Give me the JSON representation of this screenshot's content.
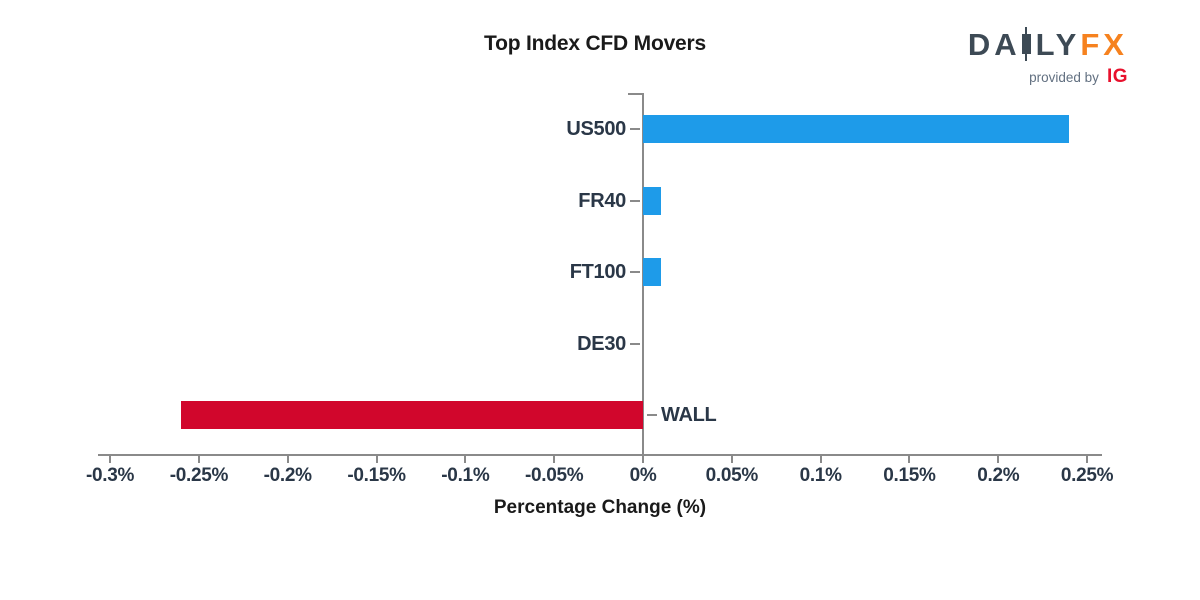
{
  "title": "Top Index CFD Movers",
  "logo": {
    "brand_part1": "DA",
    "brand_part2": "LY",
    "brand_part3": "FX",
    "provided_by": "provided by",
    "ig": "IG"
  },
  "chart_data": {
    "type": "bar",
    "orientation": "horizontal",
    "title": "Top Index CFD Movers",
    "xlabel": "Percentage Change (%)",
    "ylabel": "",
    "categories": [
      "US500",
      "FR40",
      "FT100",
      "DE30",
      "WALL"
    ],
    "values": [
      0.24,
      0.01,
      0.01,
      0.0,
      -0.26
    ],
    "value_unit": "%",
    "xlim": [
      -0.3,
      0.25
    ],
    "xtick_values": [
      -0.3,
      -0.25,
      -0.2,
      -0.15,
      -0.1,
      -0.05,
      0,
      0.05,
      0.1,
      0.15,
      0.2,
      0.25
    ],
    "xtick_labels": [
      "-0.3%",
      "-0.25%",
      "-0.2%",
      "-0.15%",
      "-0.1%",
      "-0.05%",
      "0%",
      "0.05%",
      "0.1%",
      "0.15%",
      "0.2%",
      "0.25%"
    ],
    "grid": false,
    "legend": "none",
    "bar_colors": {
      "positive": "#1E9BE9",
      "negative": "#D1062C"
    }
  },
  "colors": {
    "background": "#FFFFFF",
    "axis": "#8A8A8A",
    "tick_text": "#2A3747",
    "title_text": "#1A1A1A",
    "brand_dark": "#3D4A55",
    "brand_orange": "#F6821F",
    "provided_by_gray": "#627081",
    "ig_red": "#E8112D"
  }
}
